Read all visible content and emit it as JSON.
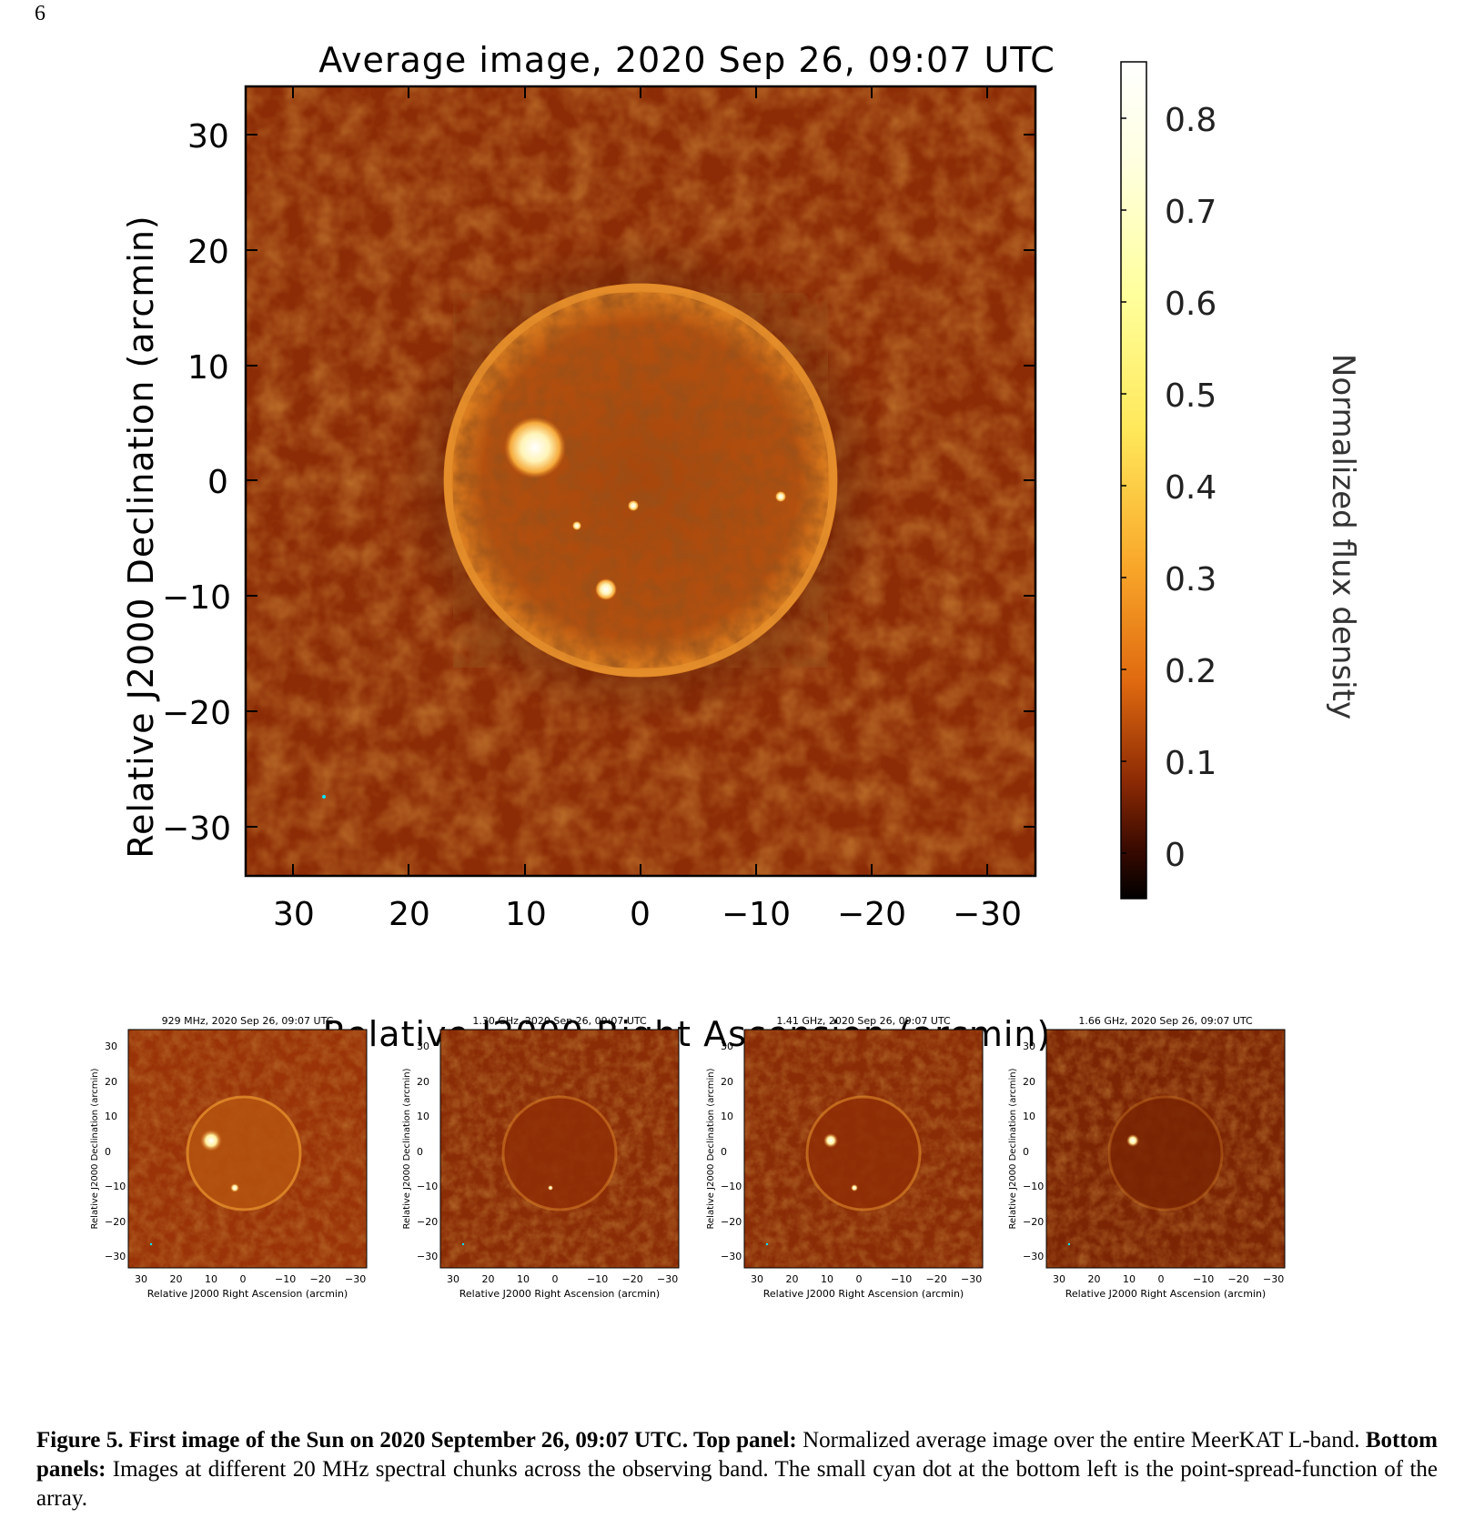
{
  "page_number": "6",
  "main_panel": {
    "title": "Average image, 2020 Sep 26, 09:07 UTC",
    "xlabel": "Relative J2000 Right Ascension (arcmin)",
    "ylabel": "Relative J2000 Declination (arcmin)",
    "x_ticks": [
      "30",
      "20",
      "10",
      "0",
      "−10",
      "−20",
      "−30"
    ],
    "y_ticks": [
      "30",
      "20",
      "10",
      "0",
      "−10",
      "−20",
      "−30"
    ],
    "colorbar_label": "Normalized flux density",
    "colorbar_ticks": [
      "0.8",
      "0.7",
      "0.6",
      "0.5",
      "0.4",
      "0.3",
      "0.2",
      "0.1",
      "0"
    ]
  },
  "small_panels": [
    {
      "title": "929 MHz, 2020 Sep 26, 09:07 UTC",
      "xlabel": "Relative J2000 Right Ascension (arcmin)",
      "ylabel": "Relative J2000 Declination (arcmin)"
    },
    {
      "title": "1.30 GHz, 2020 Sep 26, 09:07 UTC",
      "xlabel": "Relative J2000 Right Ascension (arcmin)",
      "ylabel": "Relative J2000 Declination (arcmin)"
    },
    {
      "title": "1.41 GHz, 2020 Sep 26, 09:07 UTC",
      "xlabel": "Relative J2000 Right Ascension (arcmin)",
      "ylabel": "Relative J2000 Declination (arcmin)"
    },
    {
      "title": "1.66 GHz, 2020 Sep 26, 09:07 UTC",
      "xlabel": "Relative J2000 Right Ascension (arcmin)",
      "ylabel": "Relative J2000 Declination (arcmin)"
    }
  ],
  "small_x_ticks": [
    "30",
    "20",
    "10",
    "0",
    "−10",
    "−20",
    "−30"
  ],
  "small_y_ticks": [
    "30",
    "20",
    "10",
    "0",
    "−10",
    "−20",
    "−30"
  ],
  "caption": {
    "bold_lead": "Figure 5. First image of the Sun on 2020 September 26, 09:07 UTC. Top panel:",
    "text1": " Normalized average image over the entire MeerKAT L-band. ",
    "bold2": "Bottom panels:",
    "text2": " Images at different 20 MHz spectral chunks across the observing band. The small cyan dot at the bottom left is the point-spread-function of the array."
  },
  "colors": {
    "background": "#8a2a05",
    "disk": "#b9520d",
    "limb": "#e0801c",
    "bright": "#fff2b0",
    "psf": "#00e5ff"
  }
}
